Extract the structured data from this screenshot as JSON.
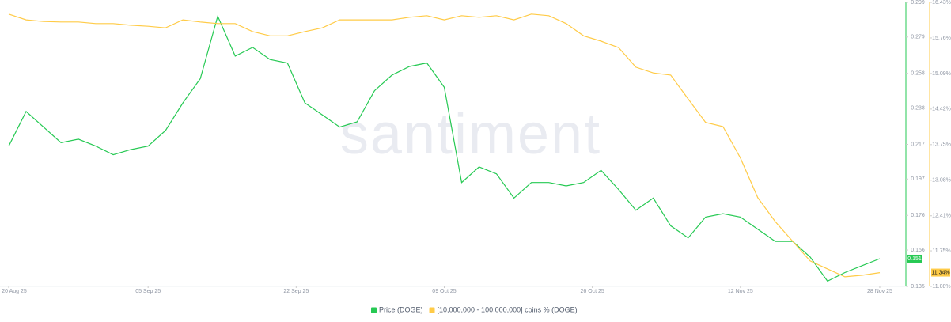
{
  "chart_data": {
    "type": "line",
    "watermark": "santiment",
    "x": [
      "2025-08-20",
      "2025-08-22",
      "2025-08-24",
      "2025-08-26",
      "2025-08-28",
      "2025-08-30",
      "2025-09-01",
      "2025-09-03",
      "2025-09-05",
      "2025-09-07",
      "2025-09-09",
      "2025-09-11",
      "2025-09-13",
      "2025-09-15",
      "2025-09-17",
      "2025-09-19",
      "2025-09-21",
      "2025-09-23",
      "2025-09-25",
      "2025-09-27",
      "2025-09-29",
      "2025-10-01",
      "2025-10-03",
      "2025-10-05",
      "2025-10-07",
      "2025-10-09",
      "2025-10-11",
      "2025-10-13",
      "2025-10-15",
      "2025-10-17",
      "2025-10-19",
      "2025-10-21",
      "2025-10-23",
      "2025-10-25",
      "2025-10-27",
      "2025-10-29",
      "2025-10-31",
      "2025-11-02",
      "2025-11-04",
      "2025-11-06",
      "2025-11-08",
      "2025-11-10",
      "2025-11-12",
      "2025-11-14",
      "2025-11-16",
      "2025-11-18",
      "2025-11-20",
      "2025-11-22",
      "2025-11-24",
      "2025-11-26",
      "2025-11-28"
    ],
    "series": [
      {
        "name": "Price (DOGE)",
        "color": "#26c953",
        "axis": "y",
        "values": [
          0.216,
          0.236,
          0.227,
          0.218,
          0.22,
          0.216,
          0.211,
          0.214,
          0.216,
          0.225,
          0.241,
          0.255,
          0.291,
          0.268,
          0.273,
          0.266,
          0.264,
          0.241,
          0.234,
          0.227,
          0.23,
          0.248,
          0.257,
          0.262,
          0.264,
          0.25,
          0.195,
          0.204,
          0.2,
          0.186,
          0.195,
          0.195,
          0.193,
          0.195,
          0.202,
          0.191,
          0.179,
          0.186,
          0.17,
          0.163,
          0.175,
          0.177,
          0.175,
          0.168,
          0.161,
          0.161,
          0.152,
          0.138,
          0.143,
          0.147,
          0.151
        ]
      },
      {
        "name": "[10,000,000 - 100,000,000] coins % (DOGE)",
        "color": "#ffcb47",
        "axis": "y2",
        "last_value_label": "11.34%",
        "values": [
          16.21,
          16.1,
          16.07,
          16.06,
          16.06,
          16.03,
          16.03,
          16.0,
          15.98,
          15.95,
          16.1,
          16.06,
          16.03,
          16.03,
          15.88,
          15.8,
          15.8,
          15.88,
          15.95,
          16.1,
          16.1,
          16.1,
          16.1,
          16.15,
          16.18,
          16.1,
          16.18,
          16.15,
          16.18,
          16.1,
          16.21,
          16.18,
          16.03,
          15.8,
          15.7,
          15.58,
          15.21,
          15.1,
          15.06,
          14.61,
          14.17,
          14.09,
          13.5,
          12.75,
          12.3,
          11.93,
          11.56,
          11.41,
          11.26,
          11.29,
          11.34
        ]
      }
    ],
    "xlim": [
      "2025-08-19",
      "2025-12-01"
    ],
    "xticks": [
      {
        "value": "2025-08-20",
        "label": "20 Aug 25"
      },
      {
        "value": "2025-09-05",
        "label": "05 Sep 25"
      },
      {
        "value": "2025-09-22",
        "label": "22 Sep 25"
      },
      {
        "value": "2025-10-09",
        "label": "09 Oct 25"
      },
      {
        "value": "2025-10-26",
        "label": "26 Oct 25"
      },
      {
        "value": "2025-11-12",
        "label": "12 Nov 25"
      },
      {
        "value": "2025-11-28",
        "label": "28 Nov 25"
      }
    ],
    "ylim": [
      0.135,
      0.299
    ],
    "yticks": [
      0.135,
      0.156,
      0.176,
      0.197,
      0.217,
      0.238,
      0.258,
      0.279,
      0.299
    ],
    "y2lim": [
      11.08,
      16.43
    ],
    "y2ticks": [
      {
        "value": 11.08,
        "label": "11.08%"
      },
      {
        "value": 11.75,
        "label": "11.75%"
      },
      {
        "value": 12.41,
        "label": "12.41%"
      },
      {
        "value": 13.08,
        "label": "13.08%"
      },
      {
        "value": 13.75,
        "label": "13.75%"
      },
      {
        "value": 14.42,
        "label": "14.42%"
      },
      {
        "value": 15.09,
        "label": "15.09%"
      },
      {
        "value": 15.76,
        "label": "15.76%"
      },
      {
        "value": 16.43,
        "label": "16.43%"
      }
    ],
    "grid": false
  }
}
